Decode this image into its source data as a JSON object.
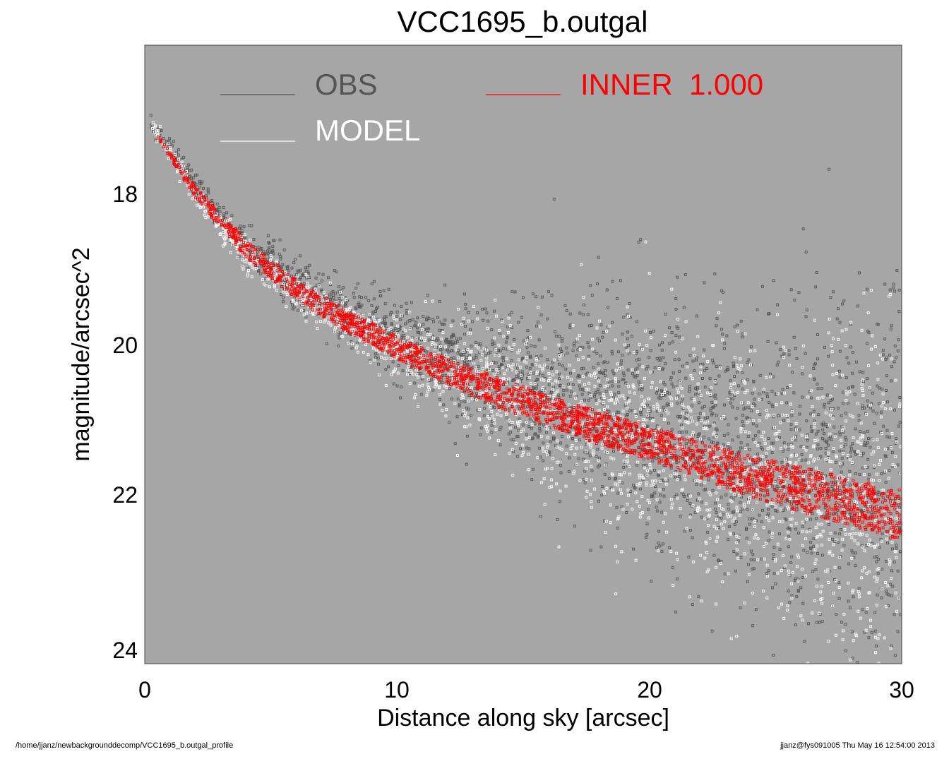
{
  "chart_data": {
    "type": "scatter",
    "title": "VCC1695_b.outgal",
    "xlabel": "Distance along sky [arcsec]",
    "ylabel": "magnitude/arcsec^2",
    "xlim": [
      0,
      30
    ],
    "ylim": [
      24.2,
      15.9
    ],
    "y_inverted": true,
    "xticks": [
      "0",
      "10",
      "20",
      "30"
    ],
    "yticks": [
      "18",
      "20",
      "22",
      "24"
    ],
    "plot_background": "#a6a6a6",
    "legend": [
      {
        "name": "OBS",
        "color": "#555555"
      },
      {
        "name": "MODEL",
        "color": "#ffffff"
      },
      {
        "name": "INNER  1.000",
        "color": "#ff0000"
      }
    ],
    "series": [
      {
        "name": "OBS",
        "color": "#555555",
        "trend": {
          "x": [
            0.2,
            1,
            2,
            4,
            6,
            8,
            10,
            12,
            14,
            16,
            18,
            20,
            22,
            24,
            26,
            28,
            30
          ],
          "y": [
            16.95,
            17.3,
            17.8,
            18.6,
            19.1,
            19.5,
            19.8,
            20.1,
            20.35,
            20.55,
            20.75,
            20.95,
            21.1,
            21.25,
            21.4,
            21.55,
            21.7
          ]
        },
        "spread_at_x": {
          "x": [
            0,
            10,
            20,
            30
          ],
          "sigma": [
            0.05,
            0.25,
            0.8,
            1.3
          ]
        }
      },
      {
        "name": "MODEL",
        "color": "#ffffff",
        "trend": {
          "x": [
            0.2,
            1,
            2,
            4,
            6,
            8,
            10,
            12,
            14,
            16,
            18,
            20,
            22,
            24,
            26,
            28,
            30
          ],
          "y": [
            16.95,
            17.35,
            17.9,
            18.7,
            19.2,
            19.6,
            19.95,
            20.25,
            20.5,
            20.75,
            20.95,
            21.15,
            21.35,
            21.55,
            21.75,
            21.9,
            22.1
          ]
        },
        "spread_at_x": {
          "x": [
            0,
            10,
            20,
            30
          ],
          "sigma": [
            0.05,
            0.2,
            0.75,
            1.2
          ]
        }
      },
      {
        "name": "INNER  1.000",
        "color": "#ff0000",
        "upper": {
          "x": [
            0.5,
            2,
            4,
            6,
            8,
            10,
            12,
            14,
            16,
            18,
            20,
            22,
            24,
            26,
            28,
            30
          ],
          "y": [
            17.1,
            17.8,
            18.5,
            19.05,
            19.45,
            19.8,
            20.1,
            20.35,
            20.6,
            20.8,
            21.0,
            21.2,
            21.4,
            21.55,
            21.7,
            21.85
          ]
        },
        "lower": {
          "x": [
            0.5,
            2,
            4,
            6,
            8,
            10,
            12,
            14,
            16,
            18,
            20,
            22,
            24,
            26,
            28,
            30
          ],
          "y": [
            17.15,
            17.95,
            18.75,
            19.3,
            19.75,
            20.1,
            20.45,
            20.75,
            21.0,
            21.25,
            21.45,
            21.7,
            21.95,
            22.15,
            22.35,
            22.55
          ]
        }
      }
    ]
  },
  "footer": {
    "left": "/home/jjanz/newbackgrounddecomp/VCC1695_b.outgal_profile",
    "right": "jjanz@fys091005  Thu May 16 12:54:00 2013"
  }
}
